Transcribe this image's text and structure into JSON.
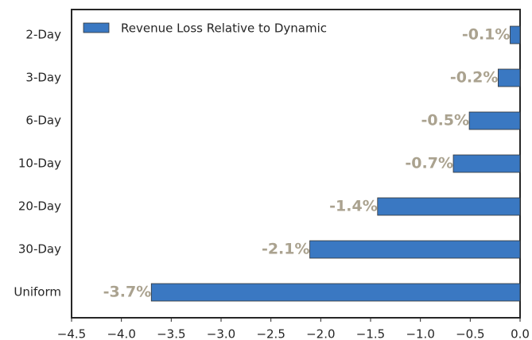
{
  "chart_data": {
    "type": "barh",
    "categories": [
      "2-Day",
      "3-Day",
      "6-Day",
      "10-Day",
      "20-Day",
      "30-Day",
      "Uniform"
    ],
    "series": [
      {
        "name": "Revenue Loss Relative to Dynamic",
        "color": "#3a78c2",
        "values": [
          -0.1,
          -0.22,
          -0.51,
          -0.67,
          -1.43,
          -2.11,
          -3.7
        ],
        "value_labels": [
          "-0.1%",
          "-0.2%",
          "-0.5%",
          "-0.7%",
          "-1.4%",
          "-2.1%",
          "-3.7%"
        ]
      }
    ],
    "xlim": [
      -4.5,
      0
    ],
    "xticks": [
      {
        "value": -4.5,
        "label": "−4.5"
      },
      {
        "value": -4,
        "label": "−4.0"
      },
      {
        "value": -3.5,
        "label": "−3.5"
      },
      {
        "value": -3,
        "label": "−3.0"
      },
      {
        "value": -2.5,
        "label": "−2.5"
      },
      {
        "value": -2,
        "label": "−2.0"
      },
      {
        "value": -1.5,
        "label": "−1.5"
      },
      {
        "value": -1,
        "label": "−1.0"
      },
      {
        "value": -0.5,
        "label": "−0.5"
      },
      {
        "value": 0,
        "label": "0.0"
      }
    ],
    "legend": "upper left"
  }
}
